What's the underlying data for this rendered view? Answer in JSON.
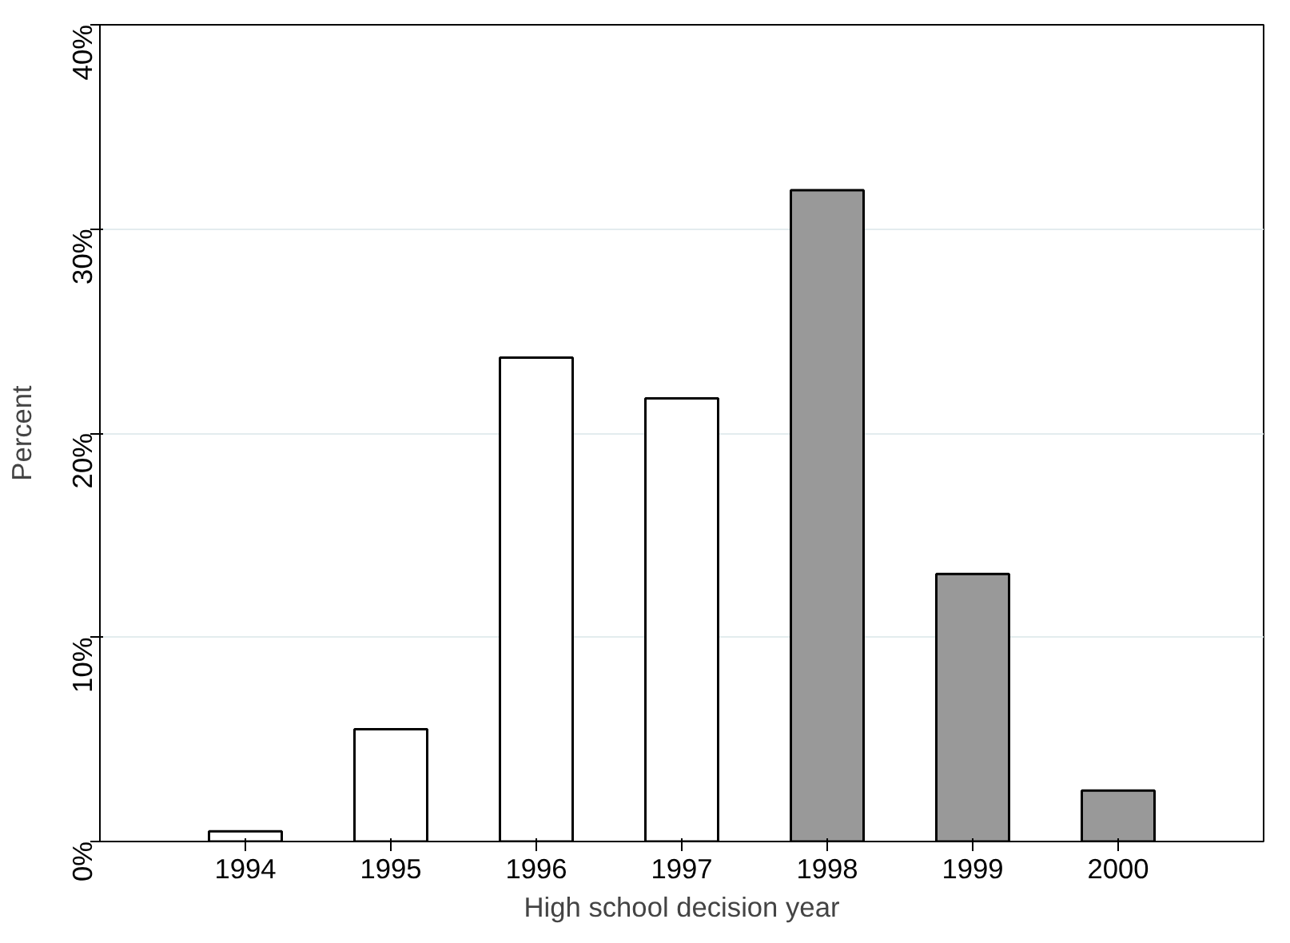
{
  "chart_data": {
    "type": "bar",
    "xlabel": "High school decision year",
    "ylabel": "Percent",
    "x": [
      1994,
      1995,
      1996,
      1997,
      1998,
      1999,
      2000
    ],
    "values": [
      0.5,
      5.5,
      23.7,
      21.7,
      31.9,
      13.1,
      2.5
    ],
    "colors": [
      "#ffffff",
      "#ffffff",
      "#ffffff",
      "#ffffff",
      "#999999",
      "#999999",
      "#999999"
    ],
    "xlim": [
      1993,
      2001
    ],
    "xticks": [
      1994,
      1995,
      1996,
      1997,
      1998,
      1999,
      2000
    ],
    "ylim": [
      0,
      40
    ],
    "yticks": [
      {
        "value": 0,
        "label": "0%"
      },
      {
        "value": 10,
        "label": "10%"
      },
      {
        "value": 20,
        "label": "20%"
      },
      {
        "value": 30,
        "label": "30%"
      },
      {
        "value": 40,
        "label": "40%"
      }
    ],
    "grid": "y"
  }
}
